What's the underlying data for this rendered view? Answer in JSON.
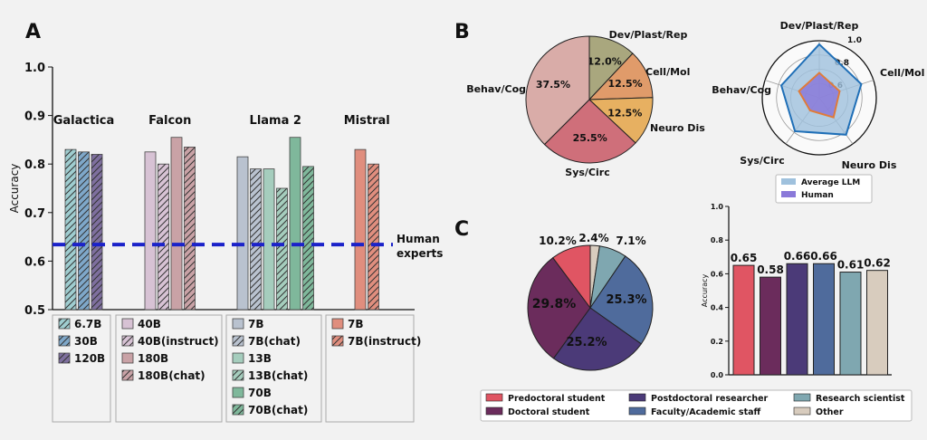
{
  "panel_labels": {
    "a": "A",
    "b": "B",
    "c": "C"
  },
  "colors": {
    "background": "#f2f2f2",
    "human_line": "#1b22c9",
    "galactica": [
      "#9fcdd0",
      "#7ea7c9",
      "#7e6f9e"
    ],
    "falcon": [
      "#d7c2d4",
      "#d7c2d4",
      "#c9a2a6",
      "#c9a2a6"
    ],
    "llama": [
      "#b9c2cf",
      "#b9c2cf",
      "#a5cdbd",
      "#a5cdbd",
      "#7fb89b",
      "#7fb89b"
    ],
    "mistral": [
      "#e08e7e",
      "#e08e7e"
    ],
    "pie_b": [
      "#a9a77e",
      "#e09b6a",
      "#e7b061",
      "#cf6f7a",
      "#d9aca8"
    ],
    "radar_llm": "#1f6fb7",
    "radar_llm_fill": "#9fc1dd",
    "radar_human": "#e07b39",
    "radar_human_fill": "#8a79d9",
    "c_groups": [
      "#e05563",
      "#6b2c5c",
      "#4b3a78",
      "#4f6b9c",
      "#7fa7b0",
      "#d8ccbe"
    ]
  },
  "chart_data": [
    {
      "id": "A",
      "type": "bar",
      "ylabel": "Accuracy",
      "ylim": [
        0.5,
        1.0
      ],
      "yticks": [
        "0.5",
        "0.6",
        "0.7",
        "0.8",
        "0.9",
        "1.0"
      ],
      "grid": false,
      "groups": [
        {
          "name": "Galactica",
          "values": [
            0.83,
            0.825,
            0.82
          ],
          "hatch": [
            true,
            true,
            true
          ],
          "legend": [
            "6.7B",
            "30B",
            "120B"
          ]
        },
        {
          "name": "Falcon",
          "values": [
            0.825,
            0.8,
            0.855,
            0.835
          ],
          "hatch": [
            false,
            true,
            false,
            true
          ],
          "legend": [
            "40B",
            "40B(instruct)",
            "180B",
            "180B(chat)"
          ]
        },
        {
          "name": "Llama 2",
          "values": [
            0.815,
            0.79,
            0.79,
            0.75,
            0.855,
            0.795
          ],
          "hatch": [
            false,
            true,
            false,
            true,
            false,
            true
          ],
          "legend": [
            "7B",
            "7B(chat)",
            "13B",
            "13B(chat)",
            "70B",
            "70B(chat)"
          ]
        },
        {
          "name": "Mistral",
          "values": [
            0.83,
            0.8
          ],
          "hatch": [
            false,
            true
          ],
          "legend": [
            "7B",
            "7B(instruct)"
          ]
        }
      ],
      "reference_line": {
        "value": 0.634,
        "label_line1": "Human",
        "label_line2": "experts"
      }
    },
    {
      "id": "B-pie",
      "type": "pie",
      "slices": [
        {
          "label": "Dev/Plast/Rep",
          "value": 12.0,
          "text": "12.0%"
        },
        {
          "label": "Cell/Mol",
          "value": 12.5,
          "text": "12.5%"
        },
        {
          "label": "Neuro Dis",
          "value": 12.5,
          "text": "12.5%"
        },
        {
          "label": "Sys/Circ",
          "value": 25.5,
          "text": "25.5%"
        },
        {
          "label": "Behav/Cog",
          "value": 37.5,
          "text": "37.5%"
        }
      ]
    },
    {
      "id": "B-radar",
      "type": "radar",
      "axes": [
        "Dev/Plast/Rep",
        "Cell/Mol",
        "Neuro Dis",
        "Sys/Circ",
        "Behav/Cog"
      ],
      "rlim": [
        0.2,
        1.0
      ],
      "ring_labels": [
        "0.6",
        "0.8",
        "1.0"
      ],
      "series": [
        {
          "name": "Average LLM",
          "values": [
            0.95,
            0.82,
            0.84,
            0.78,
            0.76
          ]
        },
        {
          "name": "Human",
          "values": [
            0.55,
            0.5,
            0.54,
            0.42,
            0.5
          ]
        }
      ]
    },
    {
      "id": "C-pie",
      "type": "pie",
      "slices": [
        {
          "label": "Other",
          "value": 2.4,
          "text": "2.4%"
        },
        {
          "label": "Research scientist",
          "value": 7.1,
          "text": "7.1%"
        },
        {
          "label": "Faculty/Academic staff",
          "value": 25.3,
          "text": "25.3%"
        },
        {
          "label": "Postdoctoral researcher",
          "value": 25.2,
          "text": "25.2%"
        },
        {
          "label": "Doctoral student",
          "value": 29.8,
          "text": "29.8%"
        },
        {
          "label": "Predoctoral student",
          "value": 10.2,
          "text": "10.2%"
        }
      ]
    },
    {
      "id": "C-bar",
      "type": "bar",
      "ylabel": "Accuracy",
      "ylim": [
        0.0,
        1.0
      ],
      "yticks": [
        "0.0",
        "0.2",
        "0.4",
        "0.6",
        "0.8",
        "1.0"
      ],
      "categories": [
        "Predoctoral student",
        "Doctoral student",
        "Postdoctoral researcher",
        "Faculty/Academic staff",
        "Research scientist",
        "Other"
      ],
      "values": [
        0.65,
        0.58,
        0.66,
        0.66,
        0.61,
        0.62
      ],
      "value_labels": [
        "0.65",
        "0.58",
        "0.66",
        "0.66",
        "0.61",
        "0.62"
      ],
      "legend": [
        "Predoctoral student",
        "Doctoral student",
        "Postdoctoral researcher",
        "Faculty/Academic staff",
        "Research scientist",
        "Other"
      ]
    }
  ]
}
